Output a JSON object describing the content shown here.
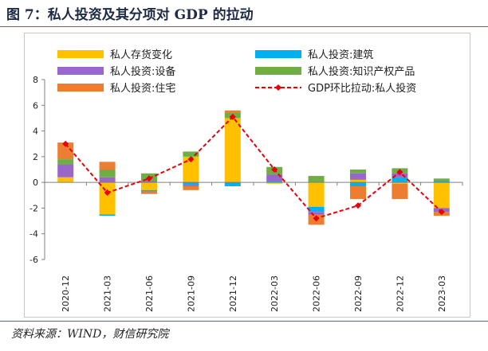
{
  "figure": {
    "title": "图 7：私人投资及其分项对 GDP 的拉动",
    "source": "资料来源：WIND，财信研究院"
  },
  "colors": {
    "inventory": "#ffc000",
    "structure": "#00b0f0",
    "equipment": "#9966cc",
    "ip": "#70ad47",
    "residential": "#ed7d31",
    "total": "#e8000b"
  },
  "chart_data": {
    "type": "bar",
    "stacked": true,
    "categories": [
      "2020-12",
      "2021-03",
      "2021-06",
      "2021-09",
      "2021-12",
      "2022-03",
      "2022-06",
      "2022-09",
      "2022-12",
      "2023-03"
    ],
    "ylim": [
      -6,
      8
    ],
    "yticks": [
      -6,
      -4,
      -2,
      0,
      2,
      4,
      6,
      8
    ],
    "series": [
      {
        "key": "inventory",
        "name": "私人存货变化",
        "kind": "bar",
        "values": [
          0.4,
          -2.5,
          -0.6,
          2.0,
          5.0,
          -0.1,
          -1.9,
          0.2,
          -0.1,
          -2.0
        ]
      },
      {
        "key": "structure",
        "name": "私人投资:建筑",
        "kind": "bar",
        "values": [
          0.0,
          -0.1,
          -0.1,
          -0.2,
          -0.3,
          0.1,
          -0.4,
          -0.3,
          0.4,
          0.1
        ]
      },
      {
        "key": "equipment",
        "name": "私人投资:设备",
        "kind": "bar",
        "values": [
          1.0,
          0.4,
          0.1,
          -0.1,
          0.0,
          0.5,
          -0.2,
          0.5,
          0.3,
          -0.3
        ]
      },
      {
        "key": "ip",
        "name": "私人投资:知识产权产品",
        "kind": "bar",
        "values": [
          0.4,
          0.6,
          0.6,
          0.4,
          0.4,
          0.6,
          0.5,
          0.3,
          0.4,
          0.2
        ]
      },
      {
        "key": "residential",
        "name": "私人投资:住宅",
        "kind": "bar",
        "values": [
          1.3,
          0.6,
          -0.2,
          -0.3,
          0.2,
          0.0,
          -0.8,
          -1.0,
          -1.2,
          -0.3
        ]
      },
      {
        "key": "total",
        "name": "GDP环比拉动:私人投资",
        "kind": "line",
        "values": [
          3.0,
          -0.8,
          0.3,
          1.8,
          5.1,
          1.0,
          -2.8,
          -1.8,
          0.8,
          -2.3
        ]
      }
    ],
    "legend_position": "top"
  }
}
